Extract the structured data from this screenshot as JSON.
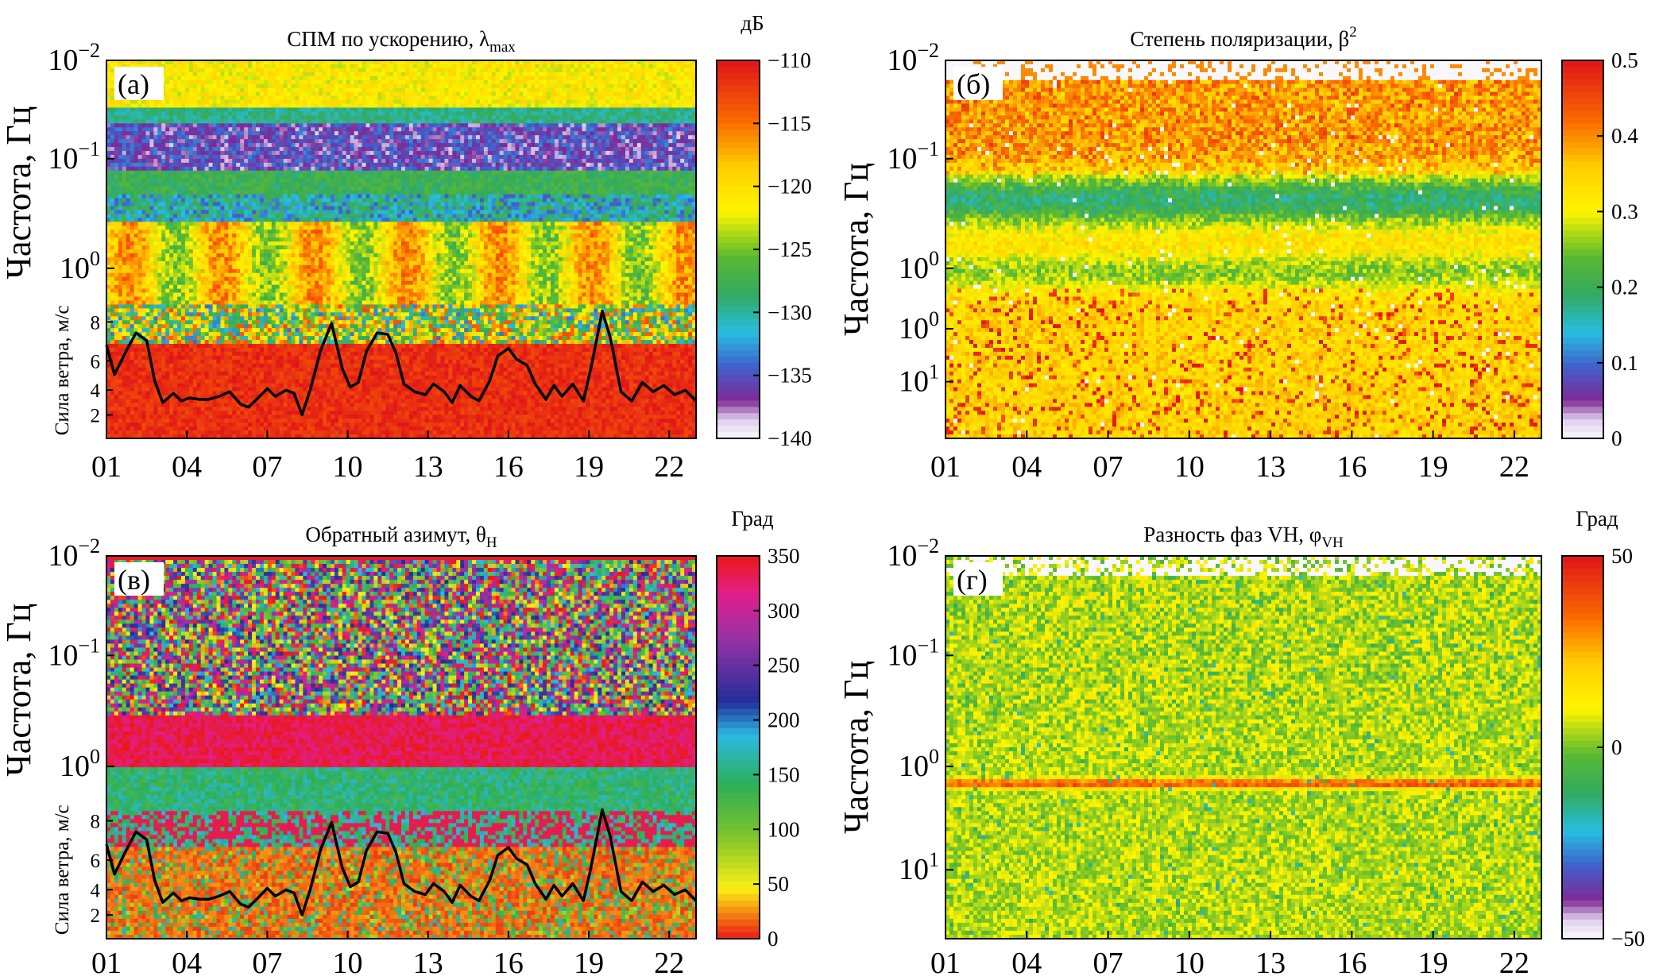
{
  "chart_data": [
    {
      "type": "heatmap",
      "id": "a",
      "letter": "(а)",
      "title": "СПМ по ускорению, λ",
      "title_sub": "max",
      "unit": "дБ",
      "ylabel": "Частота, Гц",
      "wind_label": "Сила ветра, м/с",
      "x_ticks": [
        "01",
        "04",
        "07",
        "10",
        "13",
        "16",
        "19",
        "22"
      ],
      "y_ticks": [
        {
          "base": "10",
          "exp": "−2"
        },
        {
          "base": "10",
          "exp": "−1"
        },
        {
          "base": "10",
          "exp": "0"
        }
      ],
      "wind_ticks": [
        "8",
        "6",
        "4",
        "2"
      ],
      "cbar_ticks": [
        "−110",
        "−115",
        "−120",
        "−125",
        "−130",
        "−135",
        "−140"
      ],
      "cbar_range": [
        -140,
        -110
      ],
      "colormap": "jet_white",
      "has_wind": true
    },
    {
      "type": "heatmap",
      "id": "b",
      "letter": "(б)",
      "title": "Степень поляризации, β",
      "title_sup": "2",
      "unit": "",
      "ylabel": "Частота, Гц",
      "x_ticks": [
        "01",
        "04",
        "07",
        "10",
        "13",
        "16",
        "19",
        "22"
      ],
      "y_ticks": [
        {
          "base": "10",
          "exp": "−2"
        },
        {
          "base": "10",
          "exp": "−1"
        },
        {
          "base": "10",
          "exp": "0"
        },
        {
          "base": "10",
          "exp": "0"
        },
        {
          "base": "10",
          "exp": "1"
        }
      ],
      "cbar_ticks": [
        "0.5",
        "0.4",
        "0.3",
        "0.2",
        "0.1",
        "0"
      ],
      "cbar_range": [
        0,
        0.5
      ],
      "colormap": "jet_white",
      "has_wind": false
    },
    {
      "type": "heatmap",
      "id": "c",
      "letter": "(в)",
      "title": "Обратный азимут, θ",
      "title_sub": "H",
      "unit": "Град",
      "ylabel": "Частота, Гц",
      "wind_label": "Сила ветра, м/с",
      "x_ticks": [
        "01",
        "04",
        "07",
        "10",
        "13",
        "16",
        "19",
        "22"
      ],
      "y_ticks": [
        {
          "base": "10",
          "exp": "−2"
        },
        {
          "base": "10",
          "exp": "−1"
        },
        {
          "base": "10",
          "exp": "0"
        }
      ],
      "wind_ticks": [
        "8",
        "6",
        "4",
        "2"
      ],
      "cbar_ticks": [
        "350",
        "300",
        "250",
        "200",
        "150",
        "100",
        "50",
        "0"
      ],
      "cbar_range": [
        0,
        360
      ],
      "colormap": "cyclic",
      "has_wind": true
    },
    {
      "type": "heatmap",
      "id": "d",
      "letter": "(г)",
      "title": "Разность фаз VH, φ",
      "title_sub": "VH",
      "unit": "Град",
      "ylabel": "Частота, Гц",
      "x_ticks": [
        "01",
        "04",
        "07",
        "10",
        "13",
        "16",
        "19",
        "22"
      ],
      "y_ticks": [
        {
          "base": "10",
          "exp": "−2"
        },
        {
          "base": "10",
          "exp": "−1"
        },
        {
          "base": "10",
          "exp": "0"
        },
        {
          "base": "10",
          "exp": "1"
        }
      ],
      "cbar_ticks": [
        "50",
        "0",
        "−50"
      ],
      "cbar_range": [
        -50,
        50
      ],
      "colormap": "jet_white",
      "has_wind": false
    }
  ],
  "wind_series": {
    "name": "Сила ветра",
    "x_days": [
      1,
      1.3,
      1.7,
      2.1,
      2.5,
      2.8,
      3.1,
      3.5,
      3.8,
      4.1,
      4.5,
      4.8,
      5.2,
      5.6,
      6.0,
      6.3,
      6.6,
      7.0,
      7.3,
      7.7,
      8.0,
      8.3,
      8.6,
      9.0,
      9.4,
      9.8,
      10.1,
      10.4,
      10.7,
      11.1,
      11.5,
      11.8,
      12.1,
      12.5,
      12.9,
      13.2,
      13.6,
      13.9,
      14.2,
      14.6,
      14.9,
      15.3,
      15.6,
      16.0,
      16.3,
      16.7,
      17.0,
      17.4,
      17.7,
      18.0,
      18.4,
      18.8,
      19.1,
      19.5,
      19.8,
      20.2,
      20.6,
      21.0,
      21.4,
      21.8,
      22.2,
      22.6,
      23.0
    ],
    "speed_ms": [
      6.5,
      4.6,
      6.0,
      7.3,
      6.8,
      4.2,
      2.8,
      3.4,
      2.9,
      3.1,
      3.0,
      3.0,
      3.2,
      3.5,
      2.7,
      2.5,
      3.0,
      3.7,
      3.2,
      3.6,
      3.4,
      2.0,
      3.6,
      6.2,
      7.9,
      5.0,
      3.8,
      4.1,
      6.1,
      7.3,
      7.2,
      6.0,
      4.0,
      3.5,
      3.3,
      4.0,
      3.5,
      2.8,
      3.9,
      3.2,
      2.9,
      4.2,
      5.8,
      6.3,
      5.6,
      5.2,
      4.0,
      3.0,
      3.9,
      3.2,
      4.0,
      2.9,
      5.2,
      8.7,
      7.0,
      3.5,
      2.9,
      4.1,
      3.5,
      3.9,
      3.3,
      3.6,
      2.9
    ]
  }
}
